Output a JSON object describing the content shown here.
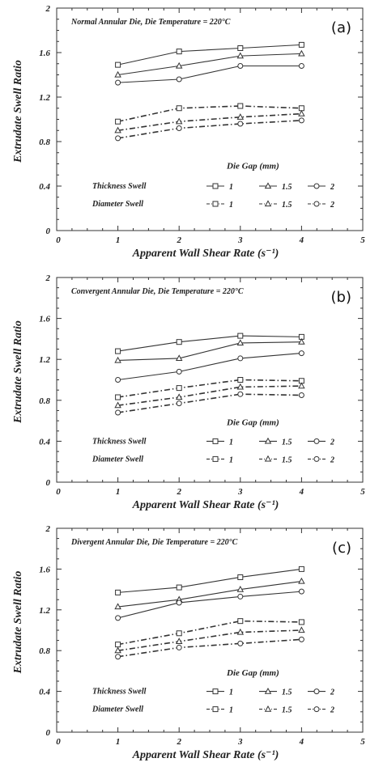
{
  "colors": {
    "line": "#333333",
    "text": "#222222",
    "background": "#ffffff"
  },
  "legend_header": "Die Gap  (mm)",
  "chart_data": [
    {
      "type": "line",
      "panel_label": "(a)",
      "title": "Normal Annular Die, Die Temperature = 220°C",
      "xlabel": "Apparent Wall Shear Rate (s⁻¹)",
      "ylabel": "Extrudate Swell Ratio",
      "xlim": [
        0,
        5
      ],
      "ylim": [
        0,
        2
      ],
      "xticks": [
        "0",
        "1",
        "2",
        "3",
        "4",
        "5"
      ],
      "yticks": [
        "0",
        "0.4",
        "0.8",
        "1.2",
        "1.6",
        "2"
      ],
      "x": [
        1,
        2,
        3,
        4
      ],
      "group_labels": [
        "Thickness Swell",
        "Diameter Swell"
      ],
      "series": [
        {
          "name": "1",
          "group": "Thickness Swell",
          "marker": "square",
          "style": "solid",
          "values": [
            1.49,
            1.61,
            1.64,
            1.67
          ]
        },
        {
          "name": "1.5",
          "group": "Thickness Swell",
          "marker": "triangle",
          "style": "solid",
          "values": [
            1.4,
            1.48,
            1.57,
            1.59
          ]
        },
        {
          "name": "2",
          "group": "Thickness Swell",
          "marker": "circle",
          "style": "solid",
          "values": [
            1.33,
            1.36,
            1.48,
            1.48
          ]
        },
        {
          "name": "1",
          "group": "Diameter Swell",
          "marker": "square",
          "style": "dashed",
          "values": [
            0.98,
            1.1,
            1.12,
            1.1
          ]
        },
        {
          "name": "1.5",
          "group": "Diameter Swell",
          "marker": "triangle",
          "style": "dashed",
          "values": [
            0.9,
            0.98,
            1.02,
            1.05
          ]
        },
        {
          "name": "2",
          "group": "Diameter Swell",
          "marker": "circle",
          "style": "dashed",
          "values": [
            0.83,
            0.92,
            0.96,
            0.99
          ]
        }
      ]
    },
    {
      "type": "line",
      "panel_label": "(b)",
      "title": "Convergent Annular Die, Die Temperature = 220°C",
      "xlabel": "Apparent Wall Shear Rate (s⁻¹)",
      "ylabel": "Extrudate Swell Ratio",
      "xlim": [
        0,
        5
      ],
      "ylim": [
        0,
        2
      ],
      "xticks": [
        "0",
        "1",
        "2",
        "3",
        "4",
        "5"
      ],
      "yticks": [
        "0",
        "0.4",
        "0.8",
        "1.2",
        "1.6",
        "2"
      ],
      "x": [
        1,
        2,
        3,
        4
      ],
      "group_labels": [
        "Thickness Swell",
        "Diameter Swell"
      ],
      "series": [
        {
          "name": "1",
          "group": "Thickness Swell",
          "marker": "square",
          "style": "solid",
          "values": [
            1.28,
            1.37,
            1.43,
            1.42
          ]
        },
        {
          "name": "1.5",
          "group": "Thickness Swell",
          "marker": "triangle",
          "style": "solid",
          "values": [
            1.19,
            1.21,
            1.36,
            1.37
          ]
        },
        {
          "name": "2",
          "group": "Thickness Swell",
          "marker": "circle",
          "style": "solid",
          "values": [
            1.0,
            1.08,
            1.21,
            1.26
          ]
        },
        {
          "name": "1",
          "group": "Diameter Swell",
          "marker": "square",
          "style": "dashed",
          "values": [
            0.83,
            0.92,
            1.0,
            0.99
          ]
        },
        {
          "name": "1.5",
          "group": "Diameter Swell",
          "marker": "triangle",
          "style": "dashed",
          "values": [
            0.75,
            0.83,
            0.93,
            0.94
          ]
        },
        {
          "name": "2",
          "group": "Diameter Swell",
          "marker": "circle",
          "style": "dashed",
          "values": [
            0.68,
            0.77,
            0.86,
            0.85
          ]
        }
      ]
    },
    {
      "type": "line",
      "panel_label": "(c)",
      "title": "Divergent Annular Die, Die Temperature = 220°C",
      "xlabel": "Apparent Wall Shear Rate (s⁻¹)",
      "ylabel": "Extrudate Swell Ratio",
      "xlim": [
        0,
        5
      ],
      "ylim": [
        0,
        2
      ],
      "xticks": [
        "0",
        "1",
        "2",
        "3",
        "4",
        "5"
      ],
      "yticks": [
        "0",
        "0.4",
        "0.8",
        "1.2",
        "1.6",
        "2"
      ],
      "x": [
        1,
        2,
        3,
        4
      ],
      "group_labels": [
        "Thickness Swell",
        "Diameter Swell"
      ],
      "series": [
        {
          "name": "1",
          "group": "Thickness Swell",
          "marker": "square",
          "style": "solid",
          "values": [
            1.37,
            1.42,
            1.52,
            1.6
          ]
        },
        {
          "name": "1.5",
          "group": "Thickness Swell",
          "marker": "triangle",
          "style": "solid",
          "values": [
            1.23,
            1.3,
            1.4,
            1.48
          ]
        },
        {
          "name": "2",
          "group": "Thickness Swell",
          "marker": "circle",
          "style": "solid",
          "values": [
            1.12,
            1.27,
            1.33,
            1.38
          ]
        },
        {
          "name": "1",
          "group": "Diameter Swell",
          "marker": "square",
          "style": "dashed",
          "values": [
            0.86,
            0.97,
            1.09,
            1.08
          ]
        },
        {
          "name": "1.5",
          "group": "Diameter Swell",
          "marker": "triangle",
          "style": "dashed",
          "values": [
            0.8,
            0.89,
            0.98,
            1.0
          ]
        },
        {
          "name": "2",
          "group": "Diameter Swell",
          "marker": "circle",
          "style": "dashed",
          "values": [
            0.74,
            0.83,
            0.87,
            0.91
          ]
        }
      ]
    }
  ]
}
